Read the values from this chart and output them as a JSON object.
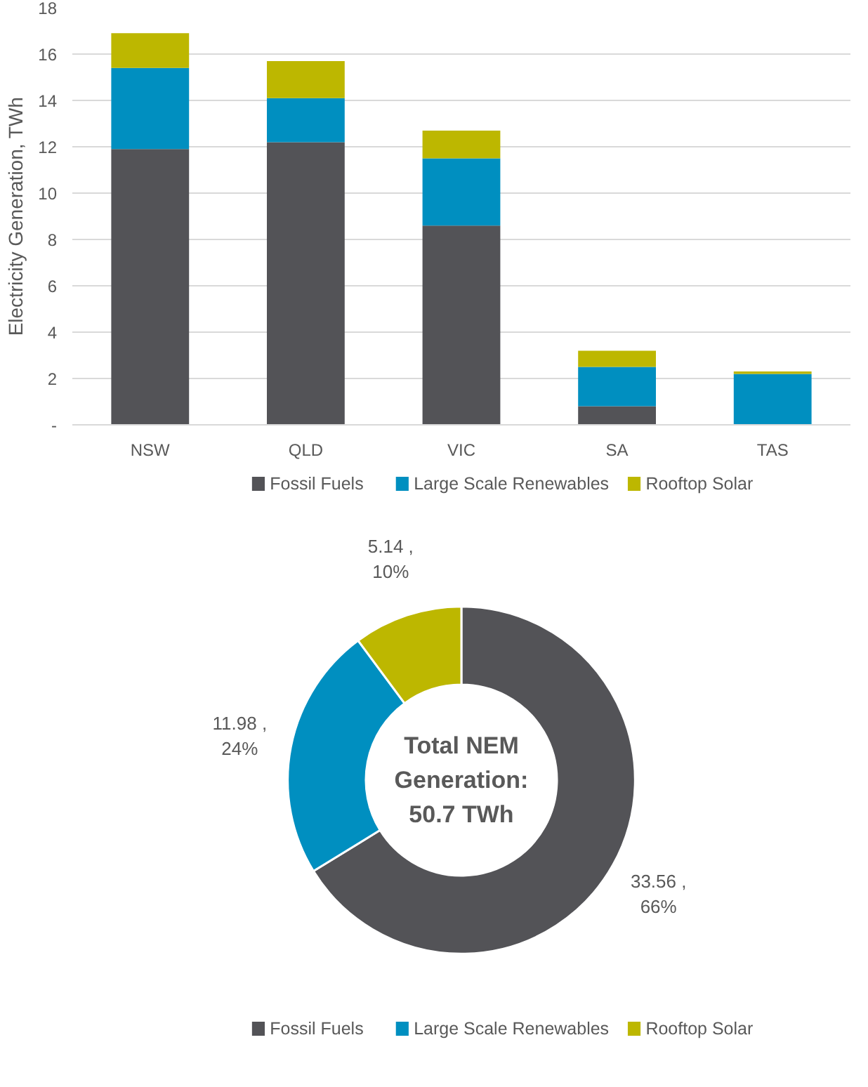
{
  "chart_data": [
    {
      "type": "bar",
      "ylabel": "Electricity Generation, TWh",
      "categories": [
        "NSW",
        "QLD",
        "VIC",
        "SA",
        "TAS"
      ],
      "stacked": true,
      "series": [
        {
          "name": "Fossil Fuels",
          "color": "#535357",
          "values": [
            11.9,
            12.2,
            8.6,
            0.8,
            0
          ]
        },
        {
          "name": "Large Scale Renewables",
          "color": "#008fc0",
          "values": [
            3.5,
            1.9,
            2.9,
            1.7,
            2.2
          ]
        },
        {
          "name": "Rooftop Solar",
          "color": "#bdb700",
          "values": [
            1.5,
            1.6,
            1.2,
            0.7,
            0.1
          ]
        }
      ],
      "ylim": [
        0,
        18
      ],
      "yticks": [
        {
          "value": 0,
          "label": "-"
        },
        2,
        4,
        6,
        8,
        10,
        12,
        14,
        16,
        18
      ],
      "grid": "y",
      "legend": "bottom"
    },
    {
      "type": "donut",
      "categories": [
        "Fossil Fuels",
        "Large Scale Renewables",
        "Rooftop Solar"
      ],
      "values": [
        33.56,
        11.98,
        5.14
      ],
      "colors": [
        "#535357",
        "#008fc0",
        "#bdb700"
      ],
      "value_labels": [
        "33.56 ,\n66%",
        "11.98 ,\n24%",
        "5.14 ,\n10%"
      ],
      "annotations": [
        "Total NEM\nGeneration:\n50.7 TWh"
      ],
      "legend": "bottom"
    }
  ]
}
